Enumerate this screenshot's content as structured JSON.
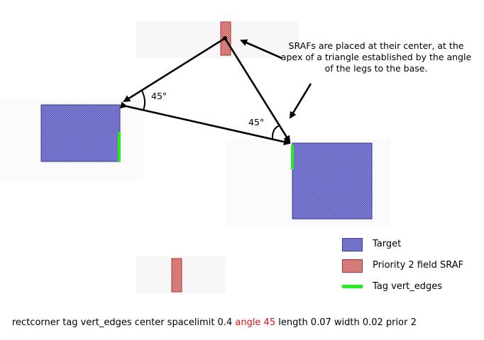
{
  "annotation": "SRAFs are placed at their center, at the apex of a triangle established by the angle of the legs to the base.",
  "angles": {
    "left": "45°",
    "right": "45°"
  },
  "legend": {
    "target": "Target",
    "sraf": "Priority 2 field SRAF",
    "tag": "Tag vert_edges"
  },
  "command": {
    "before": "rectcorner tag vert_edges center spacelimit 0.4 ",
    "highlight": "angle 45",
    "after": " length 0.07 width 0.02 prior 2"
  },
  "colors": {
    "target_fill": "#7878c8",
    "target_stroke": "#3a3aa0",
    "sraf_fill": "#d88080",
    "sraf_stroke": "#b03030",
    "tag": "#22ee22",
    "highlight": "#dd1111",
    "halo": "#f7f7f7"
  }
}
